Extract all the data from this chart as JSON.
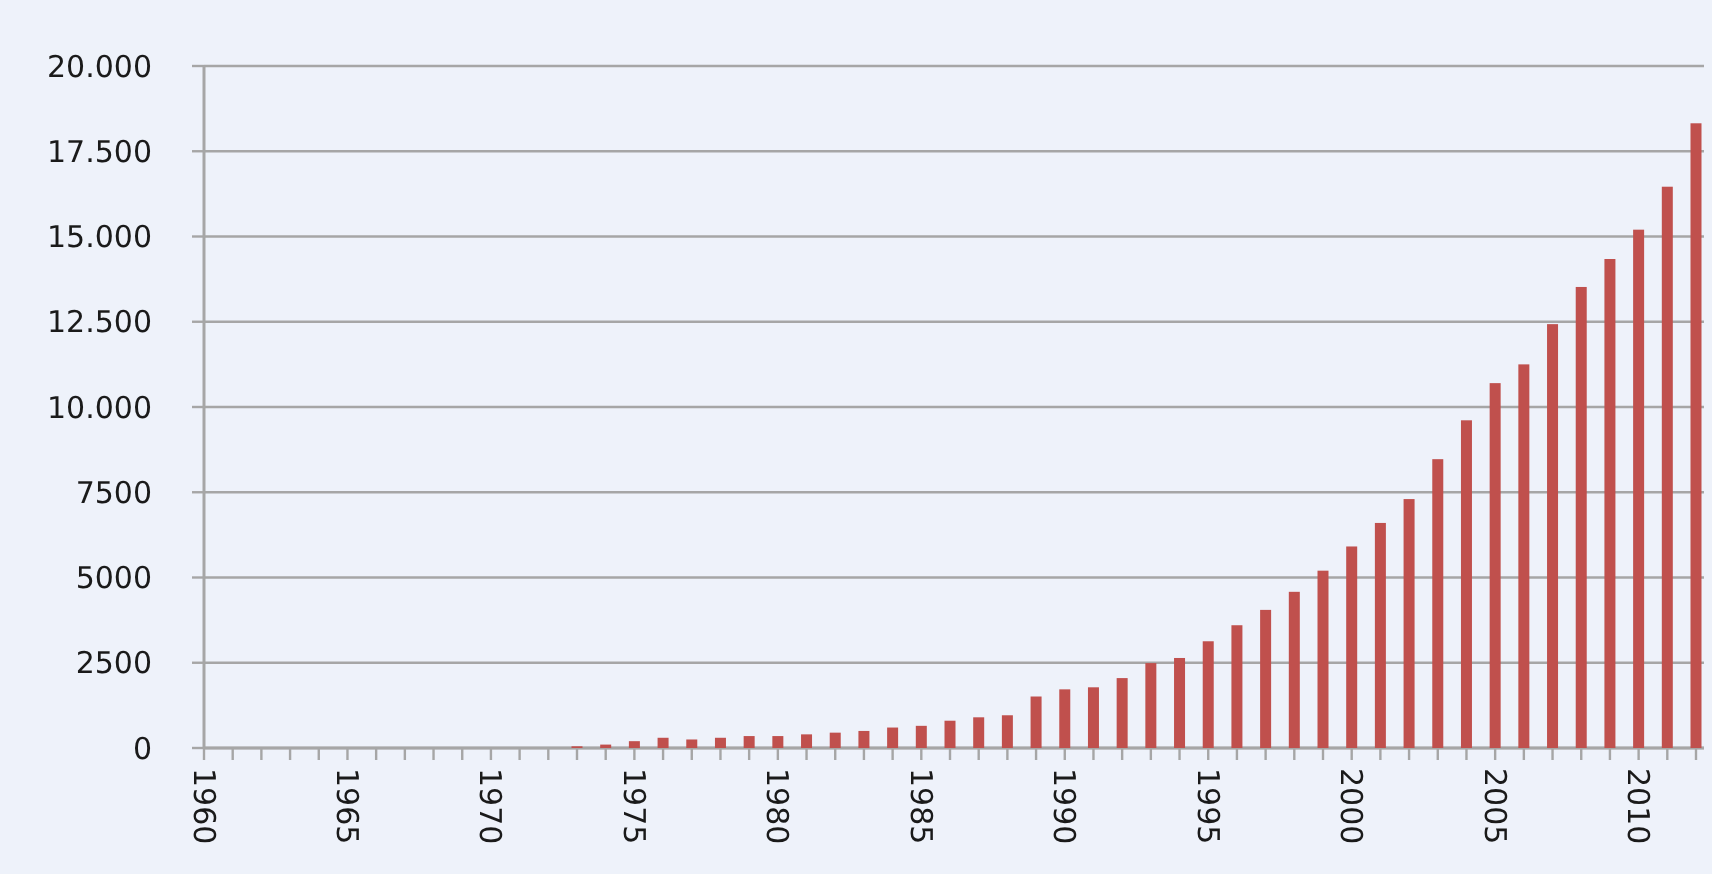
{
  "chart_data": {
    "type": "bar",
    "categories": [
      "1960",
      null,
      null,
      null,
      null,
      "1965",
      null,
      null,
      null,
      null,
      "1970",
      null,
      null,
      null,
      null,
      "1975",
      null,
      null,
      null,
      null,
      "1980",
      null,
      null,
      null,
      null,
      "1985",
      null,
      null,
      null,
      null,
      "1990",
      null,
      null,
      null,
      null,
      "1995",
      null,
      null,
      null,
      null,
      "2000",
      null,
      null,
      null,
      null,
      "2005",
      null,
      null,
      null,
      null,
      "2010",
      null,
      null
    ],
    "values": [
      0,
      0,
      0,
      0,
      0,
      0,
      0,
      0,
      0,
      0,
      0,
      0,
      0,
      50,
      100,
      200,
      300,
      250,
      300,
      350,
      350,
      400,
      450,
      500,
      600,
      650,
      800,
      900,
      960,
      1510,
      1720,
      1780,
      2050,
      2490,
      2640,
      3130,
      3600,
      4050,
      4580,
      5200,
      5910,
      6600,
      7300,
      8470,
      9610,
      10700,
      11250,
      12430,
      13520,
      14340,
      15200,
      16460,
      18320
    ],
    "color": "#c0504d",
    "ylim": [
      0,
      20000
    ],
    "yticks": [
      0,
      {
        "value": 2500,
        "label": "2500"
      },
      {
        "value": 5000,
        "label": "5000"
      },
      {
        "value": 7500,
        "label": "7500"
      },
      {
        "value": 10000,
        "label": "10.000"
      },
      {
        "value": 12500,
        "label": "12.500"
      },
      {
        "value": 15000,
        "label": "15.000"
      },
      {
        "value": 17500,
        "label": "17.500"
      },
      {
        "value": 20000,
        "label": "20.000"
      }
    ],
    "grid": "y"
  }
}
